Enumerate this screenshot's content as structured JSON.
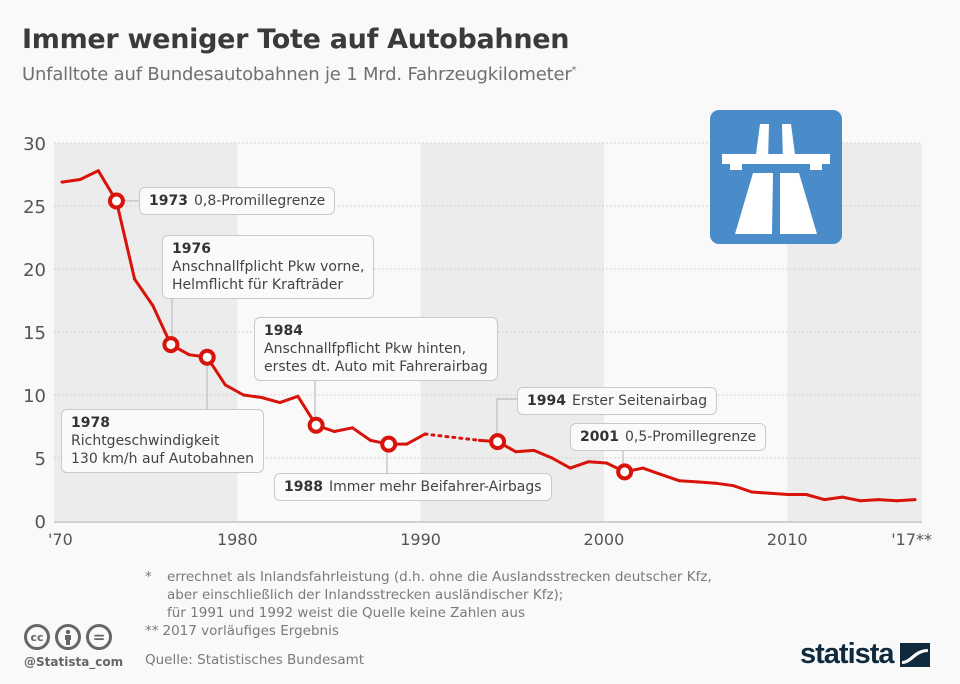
{
  "header": {
    "title": "Immer weniger Tote auf Autobahnen",
    "subtitle": "Unfalltote auf Bundesautobahnen je 1 Mrd. Fahrzeugkilometer",
    "subtitle_mark": "*"
  },
  "colors": {
    "line": "#d7130b",
    "band": "#ececec",
    "sign_blue": "#4a8bc9",
    "logo_navy": "#0f2a3d"
  },
  "icons": {
    "autobahn_sign": "autobahn-sign-icon",
    "cc": "creative-commons-icon",
    "by": "attribution-icon",
    "nd": "no-derivatives-icon",
    "logo": "statista-logo-icon"
  },
  "chart_data": {
    "type": "line",
    "title": "Immer weniger Tote auf Autobahnen",
    "subtitle": "Unfalltote auf Bundesautobahnen je 1 Mrd. Fahrzeugkilometer*",
    "xlabel": "",
    "ylabel": "",
    "ylim": [
      0,
      30
    ],
    "xlim": [
      1970,
      2017
    ],
    "grid": true,
    "yticks": [
      "0",
      "5",
      "10",
      "15",
      "20",
      "25",
      "30"
    ],
    "xticks": [
      {
        "year": 1970,
        "label": "'70"
      },
      {
        "year": 1980,
        "label": "1980"
      },
      {
        "year": 1990,
        "label": "1990"
      },
      {
        "year": 2000,
        "label": "2000"
      },
      {
        "year": 2010,
        "label": "2010"
      },
      {
        "year": 2017,
        "label": "'17**"
      }
    ],
    "bands": [
      [
        1970,
        1980
      ],
      [
        1990,
        2000
      ],
      [
        2010,
        2017
      ]
    ],
    "series": [
      {
        "name": "Unfalltote je 1 Mrd. Fahrzeugkilometer",
        "x": [
          1970,
          1971,
          1972,
          1973,
          1974,
          1975,
          1976,
          1977,
          1978,
          1979,
          1980,
          1981,
          1982,
          1983,
          1984,
          1985,
          1986,
          1987,
          1988,
          1989,
          1990,
          1993,
          1994,
          1995,
          1996,
          1997,
          1998,
          1999,
          2000,
          2001,
          2002,
          2003,
          2004,
          2005,
          2006,
          2007,
          2008,
          2009,
          2010,
          2011,
          2012,
          2013,
          2014,
          2015,
          2016,
          2017
        ],
        "values": [
          26.9,
          27.1,
          27.8,
          25.4,
          19.2,
          17.1,
          14.0,
          13.2,
          13.0,
          10.8,
          10.0,
          9.8,
          9.4,
          9.9,
          7.6,
          7.1,
          7.4,
          6.4,
          6.1,
          6.1,
          6.9,
          6.4,
          6.3,
          5.5,
          5.6,
          5.0,
          4.2,
          4.7,
          4.6,
          3.9,
          4.2,
          3.7,
          3.2,
          3.1,
          3.0,
          2.8,
          2.3,
          2.2,
          2.1,
          2.1,
          1.7,
          1.9,
          1.6,
          1.7,
          1.6,
          1.7
        ],
        "gap": {
          "from": 1990,
          "to": 1993,
          "style": "dotted",
          "note": "für 1991 und 1992 keine Zahlen"
        }
      }
    ],
    "annotations": [
      {
        "year": 1973,
        "value": 25.4,
        "label_year": "1973",
        "text": [
          "0,8-Promillegrenze"
        ]
      },
      {
        "year": 1976,
        "value": 14.0,
        "label_year": "1976",
        "text": [
          "Anschnallfplicht Pkw vorne,",
          "Helmflicht für Krafträder"
        ]
      },
      {
        "year": 1978,
        "value": 13.0,
        "label_year": "1978",
        "text": [
          "Richtgeschwindigkeit",
          "130 km/h auf Autobahnen"
        ]
      },
      {
        "year": 1984,
        "value": 7.6,
        "label_year": "1984",
        "text": [
          "Anschnallfpflicht Pkw hinten,",
          "erstes dt. Auto mit Fahrerairbag"
        ]
      },
      {
        "year": 1988,
        "value": 6.1,
        "label_year": "1988",
        "text": [
          "Immer mehr Beifahrer-Airbags"
        ]
      },
      {
        "year": 1994,
        "value": 6.3,
        "label_year": "1994",
        "text": [
          "Erster Seitenairbag"
        ]
      },
      {
        "year": 2001,
        "value": 3.9,
        "label_year": "2001",
        "text": [
          "0,5-Promillegrenze"
        ]
      }
    ]
  },
  "footer": {
    "notes": [
      {
        "mark": "*",
        "lines": [
          "errechnet als Inlandsfahrleistung (d.h. ohne die Auslandsstrecken deutscher Kfz,",
          "aber einschließlich der Inlandsstrecken ausländischer Kfz);",
          "für 1991 und 1992 weist die Quelle keine Zahlen aus"
        ]
      },
      {
        "mark": "**",
        "lines": [
          "2017 vorläufiges Ergebnis"
        ]
      }
    ],
    "source": "Quelle: Statistisches Bundesamt",
    "handle": "@Statista_com",
    "logo_text": "statista",
    "cc_labels": [
      "cc",
      "i",
      "="
    ]
  }
}
